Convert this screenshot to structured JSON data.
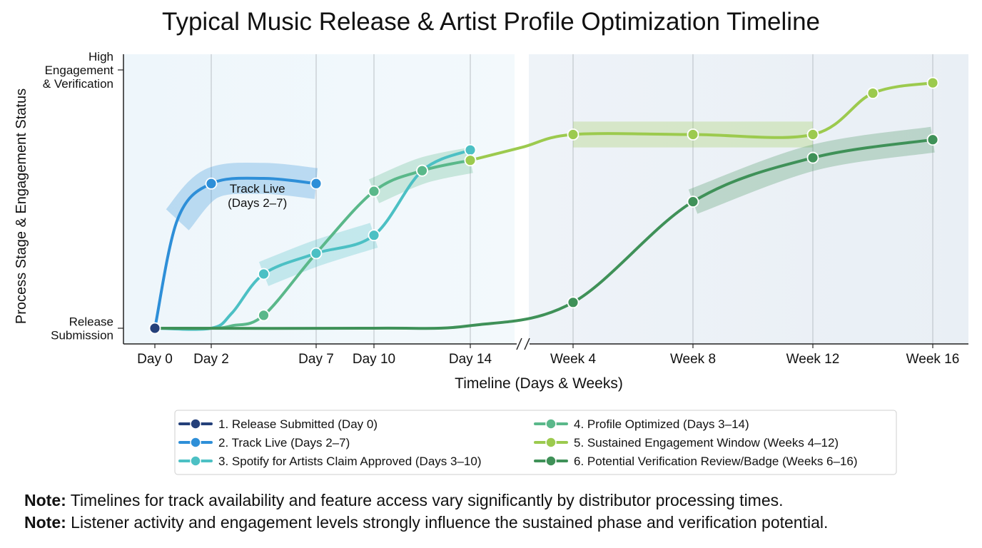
{
  "chart_data": {
    "type": "line",
    "title": "Typical Music Release & Artist Profile Optimization Timeline",
    "xlabel": "Timeline (Days & Weeks)",
    "ylabel": "Process Stage & Engagement Status",
    "x_ticks": [
      "Day 0",
      "Day 2",
      "Day 7",
      "Day 10",
      "Day 14",
      "Week 4",
      "Week 8",
      "Week 12",
      "Week 16"
    ],
    "x_tick_values": [
      0,
      2,
      7,
      10,
      14,
      28,
      56,
      84,
      112
    ],
    "y_ticks": [
      {
        "value": 0,
        "label": "Release Submission"
      },
      {
        "value": 100,
        "label": "High Engagement & Verification"
      }
    ],
    "ylim": [
      -5,
      105
    ],
    "axis_break_between": [
      14,
      28
    ],
    "grid": "vertical",
    "legend_placement": "bottom-center",
    "annotations": [
      {
        "text": "Track Live (Days 2–7)",
        "x": 4.2,
        "y": 58
      }
    ],
    "series": [
      {
        "name": "1. Release Submitted (Day 0)",
        "color": "#24407a",
        "points": [
          [
            0,
            0
          ]
        ],
        "markers": [
          [
            0,
            0
          ]
        ],
        "band": 0
      },
      {
        "name": "2. Track Live (Days 2–7)",
        "color": "#2e8fd8",
        "points": [
          [
            0,
            0
          ],
          [
            0.8,
            42
          ],
          [
            2,
            56
          ],
          [
            4.5,
            58
          ],
          [
            7,
            56
          ]
        ],
        "markers": [
          [
            2,
            56
          ],
          [
            7,
            56
          ]
        ],
        "band": 6
      },
      {
        "name": "3. Spotify for Artists Claim Approved (Days 3–10)",
        "color": "#4cc0c4",
        "points": [
          [
            0,
            0
          ],
          [
            2,
            0
          ],
          [
            3,
            6
          ],
          [
            4.5,
            21
          ],
          [
            7,
            29
          ],
          [
            10,
            36
          ],
          [
            12,
            61
          ],
          [
            14,
            69
          ]
        ],
        "markers": [
          [
            4.5,
            21
          ],
          [
            7,
            29
          ],
          [
            10,
            36
          ],
          [
            12,
            61
          ],
          [
            14,
            69
          ]
        ],
        "band": 5
      },
      {
        "name": "4. Profile Optimized (Days 3–14)",
        "color": "#5ab88a",
        "points": [
          [
            0,
            0
          ],
          [
            2,
            0
          ],
          [
            3,
            1
          ],
          [
            4.5,
            5
          ],
          [
            7,
            29
          ],
          [
            10,
            53
          ],
          [
            12,
            61
          ],
          [
            14,
            65
          ]
        ],
        "markers": [
          [
            4.5,
            5
          ],
          [
            10,
            53
          ],
          [
            12,
            61
          ],
          [
            14,
            65
          ]
        ],
        "band": 5
      },
      {
        "name": "5. Sustained Engagement Window (Weeks 4–12)",
        "color": "#9cca4e",
        "points": [
          [
            14,
            65
          ],
          [
            21,
            70
          ],
          [
            28,
            75
          ],
          [
            56,
            75
          ],
          [
            84,
            75
          ],
          [
            98,
            91
          ],
          [
            112,
            95
          ]
        ],
        "markers": [
          [
            14,
            65
          ],
          [
            28,
            75
          ],
          [
            56,
            75
          ],
          [
            84,
            75
          ],
          [
            98,
            91
          ],
          [
            112,
            95
          ]
        ],
        "band": 5
      },
      {
        "name": "6. Potential Verification Review/Badge (Weeks 6–16)",
        "color": "#3f9158",
        "points": [
          [
            0,
            0
          ],
          [
            10,
            0
          ],
          [
            14,
            1
          ],
          [
            28,
            10
          ],
          [
            56,
            49
          ],
          [
            84,
            66
          ],
          [
            112,
            73
          ]
        ],
        "markers": [
          [
            28,
            10
          ],
          [
            56,
            49
          ],
          [
            84,
            66
          ],
          [
            112,
            73
          ]
        ],
        "band": 5
      }
    ]
  },
  "notes": [
    {
      "prefix": "Note:",
      "text": " Timelines for track availability and feature access vary significantly by distributor processing times."
    },
    {
      "prefix": "Note:",
      "text": " Listener activity and engagement levels strongly influence the sustained phase and verification potential."
    }
  ]
}
